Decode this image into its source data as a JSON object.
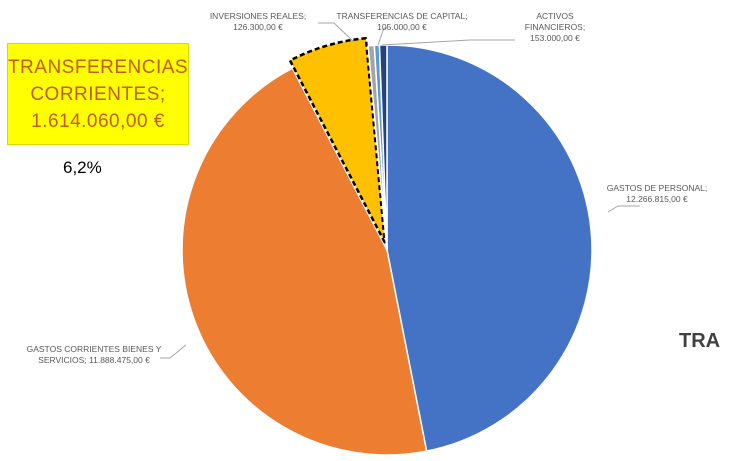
{
  "chart_data": {
    "type": "pie",
    "title": "",
    "slices": [
      {
        "label_lines": [
          "GASTOS DE PERSONAL;",
          "12.266.815,00 €"
        ],
        "value": 12266815.0,
        "color": "#4472c4"
      },
      {
        "label_lines": [
          "GASTOS CORRIENTES BIENES Y",
          "SERVICIOS; 11.888.475,00 €"
        ],
        "value": 11888475.0,
        "color": "#ed7d31"
      },
      {
        "label_lines": [],
        "value": 1614060.0,
        "color": "#ffc000",
        "highlighted": true
      },
      {
        "label_lines": [
          "INVERSIONES REALES;",
          "126.300,00 €"
        ],
        "value": 126300.0,
        "color": "#a5a5a5"
      },
      {
        "label_lines": [
          "TRANSFERENCIAS DE CAPITAL;",
          "105.000,00 €"
        ],
        "value": 105000.0,
        "color": "#5b9bd5"
      },
      {
        "label_lines": [
          "ACTIVOS",
          "FINANCIEROS;",
          "153.000,00 €"
        ],
        "value": 153000.0,
        "color": "#264478"
      }
    ]
  },
  "callout": {
    "lines": [
      "TRANSFERENCIAS",
      "CORRIENTES;",
      "1.614.060,00 €"
    ],
    "percent": "6,2%"
  },
  "cut_text": "TRA"
}
